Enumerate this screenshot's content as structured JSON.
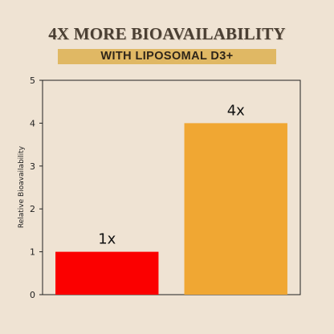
{
  "header": {
    "title": "4X MORE BIOAVAILABILITY",
    "subtitle": "WITH LIPOSOMAL D3+"
  },
  "colors": {
    "background": "#efe3d3",
    "subtitle_band": "#e0b864",
    "bar_standard": "#fb0000",
    "bar_liposomal": "#f0a733"
  },
  "chart_data": {
    "type": "bar",
    "categories": [
      "",
      ""
    ],
    "values": [
      1,
      4
    ],
    "data_labels": [
      "1x",
      "4x"
    ],
    "bar_colors": [
      "#fb0000",
      "#f0a733"
    ],
    "title": "",
    "xlabel": "",
    "ylabel": "Relative Bioavailability",
    "ylim": [
      0,
      5
    ],
    "yticks": [
      0,
      1,
      2,
      3,
      4,
      5
    ],
    "ytick_labels": [
      "0",
      "1",
      "2",
      "3",
      "4",
      "5"
    ],
    "grid": false,
    "legend": "none"
  }
}
